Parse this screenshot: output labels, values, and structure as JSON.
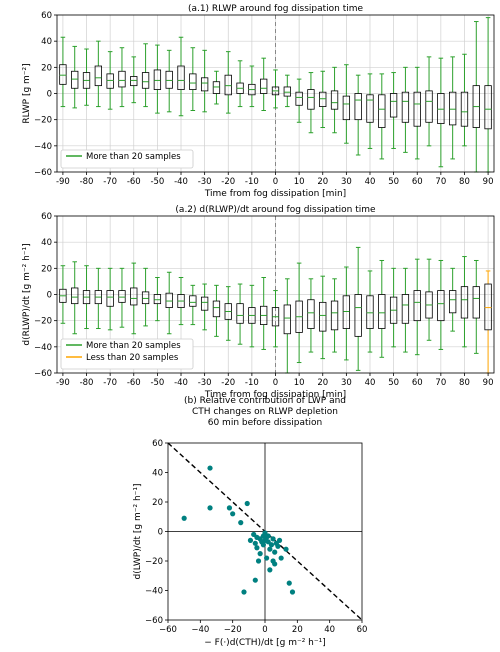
{
  "chart_data": [
    {
      "type": "box",
      "title": "(a.1) RLWP around fog dissipation time",
      "xlabel": "Time from fog dissipation [min]",
      "ylabel": "RLWP [g m⁻²]",
      "xlim": [
        -92.5,
        92.5
      ],
      "ylim": [
        -60,
        60
      ],
      "xticks": [
        -90,
        -80,
        -70,
        -60,
        -50,
        -40,
        -30,
        -20,
        -10,
        0,
        10,
        20,
        30,
        40,
        50,
        60,
        70,
        80,
        90
      ],
      "xticklabels": [
        "-90",
        "-80",
        "-70",
        "-60",
        "-50",
        "-40",
        "-30",
        "-20",
        "-10",
        "0",
        "10",
        "20",
        "30",
        "40",
        "50",
        "60",
        "70",
        "80",
        "90"
      ],
      "yticks": [
        -60,
        -40,
        -20,
        0,
        20,
        40,
        60
      ],
      "yticklabels": [
        "−60",
        "−40",
        "−20",
        "0",
        "20",
        "40",
        "60"
      ],
      "grid": true,
      "vline": 0,
      "legend": {
        "position": "bottom-left",
        "entries": [
          {
            "label": "More than 20 samples",
            "color": "#2ca02c"
          }
        ]
      },
      "series": [
        {
          "name": "More than 20 samples",
          "color": "#2ca02c",
          "x": [
            -90,
            -85,
            -80,
            -75,
            -70,
            -65,
            -60,
            -55,
            -50,
            -45,
            -40,
            -35,
            -30,
            -25,
            -20,
            -15,
            -10,
            -5,
            0,
            5,
            10,
            15,
            20,
            25,
            30,
            35,
            40,
            45,
            50,
            55,
            60,
            65,
            70,
            75,
            80,
            85,
            90
          ],
          "boxes": [
            {
              "wlo": -10,
              "q1": 7,
              "med": 14,
              "q3": 22,
              "whi": 43
            },
            {
              "wlo": -11,
              "q1": 4,
              "med": 11,
              "q3": 17,
              "whi": 36
            },
            {
              "wlo": -9,
              "q1": 4,
              "med": 10,
              "q3": 16,
              "whi": 34
            },
            {
              "wlo": -10,
              "q1": 6,
              "med": 12,
              "q3": 21,
              "whi": 40
            },
            {
              "wlo": -12,
              "q1": 4,
              "med": 10,
              "q3": 15,
              "whi": 32
            },
            {
              "wlo": -10,
              "q1": 5,
              "med": 10,
              "q3": 17,
              "whi": 35
            },
            {
              "wlo": -7,
              "q1": 6,
              "med": 10,
              "q3": 13,
              "whi": 28
            },
            {
              "wlo": -10,
              "q1": 4,
              "med": 9,
              "q3": 16,
              "whi": 38
            },
            {
              "wlo": -15,
              "q1": 3,
              "med": 10,
              "q3": 18,
              "whi": 37
            },
            {
              "wlo": -14,
              "q1": 4,
              "med": 10,
              "q3": 17,
              "whi": 33
            },
            {
              "wlo": -17,
              "q1": 3,
              "med": 10,
              "q3": 21,
              "whi": 43
            },
            {
              "wlo": -13,
              "q1": 3,
              "med": 8,
              "q3": 15,
              "whi": 35
            },
            {
              "wlo": -14,
              "q1": 2,
              "med": 8,
              "q3": 12,
              "whi": 33
            },
            {
              "wlo": -8,
              "q1": 0,
              "med": 5,
              "q3": 9,
              "whi": 17
            },
            {
              "wlo": -15,
              "q1": -1,
              "med": 6,
              "q3": 14,
              "whi": 32
            },
            {
              "wlo": -10,
              "q1": 0,
              "med": 4,
              "q3": 8,
              "whi": 25
            },
            {
              "wlo": -10,
              "q1": -1,
              "med": 3,
              "q3": 7,
              "whi": 21
            },
            {
              "wlo": -13,
              "q1": 0,
              "med": 4,
              "q3": 11,
              "whi": 27
            },
            {
              "wlo": -11,
              "q1": -1,
              "med": 2,
              "q3": 5,
              "whi": 18
            },
            {
              "wlo": -10,
              "q1": -2,
              "med": 1,
              "q3": 5,
              "whi": 14
            },
            {
              "wlo": -22,
              "q1": -9,
              "med": -3,
              "q3": 1,
              "whi": 11
            },
            {
              "wlo": -30,
              "q1": -12,
              "med": -3,
              "q3": 3,
              "whi": 16
            },
            {
              "wlo": -26,
              "q1": -10,
              "med": -4,
              "q3": 1,
              "whi": 17
            },
            {
              "wlo": -30,
              "q1": -12,
              "med": -7,
              "q3": 2,
              "whi": 20
            },
            {
              "wlo": -38,
              "q1": -20,
              "med": -8,
              "q3": -2,
              "whi": 22
            },
            {
              "wlo": -47,
              "q1": -20,
              "med": -5,
              "q3": 0,
              "whi": 14
            },
            {
              "wlo": -42,
              "q1": -22,
              "med": -5,
              "q3": -1,
              "whi": 15
            },
            {
              "wlo": -50,
              "q1": -26,
              "med": -12,
              "q3": -1,
              "whi": 15
            },
            {
              "wlo": -42,
              "q1": -18,
              "med": -6,
              "q3": 0,
              "whi": 16
            },
            {
              "wlo": -45,
              "q1": -22,
              "med": -6,
              "q3": 1,
              "whi": 20
            },
            {
              "wlo": -50,
              "q1": -25,
              "med": -8,
              "q3": 1,
              "whi": 20
            },
            {
              "wlo": -40,
              "q1": -22,
              "med": -6,
              "q3": 2,
              "whi": 28
            },
            {
              "wlo": -56,
              "q1": -23,
              "med": -12,
              "q3": 0,
              "whi": 27
            },
            {
              "wlo": -50,
              "q1": -24,
              "med": -12,
              "q3": 1,
              "whi": 28
            },
            {
              "wlo": -40,
              "q1": -25,
              "med": -14,
              "q3": 1,
              "whi": 30
            },
            {
              "wlo": -60,
              "q1": -26,
              "med": -10,
              "q3": 6,
              "whi": 55
            },
            {
              "wlo": -60,
              "q1": -27,
              "med": -12,
              "q3": 6,
              "whi": 58
            }
          ]
        }
      ]
    },
    {
      "type": "box",
      "title": "(a.2) d(RLWP)/dt around fog dissipation time",
      "xlabel": "Time from fog dissipation [min]",
      "ylabel": "d(RLWP)/dt [g m⁻² h⁻¹]",
      "xlim": [
        -92.5,
        92.5
      ],
      "ylim": [
        -60,
        60
      ],
      "xticks": [
        -90,
        -80,
        -70,
        -60,
        -50,
        -40,
        -30,
        -20,
        -10,
        0,
        10,
        20,
        30,
        40,
        50,
        60,
        70,
        80,
        90
      ],
      "xticklabels": [
        "-90",
        "-80",
        "-70",
        "-60",
        "-50",
        "-40",
        "-30",
        "-20",
        "-10",
        "0",
        "10",
        "20",
        "30",
        "40",
        "50",
        "60",
        "70",
        "80",
        "90"
      ],
      "yticks": [
        -60,
        -40,
        -20,
        0,
        20,
        40,
        60
      ],
      "yticklabels": [
        "−60",
        "−40",
        "−20",
        "0",
        "20",
        "40",
        "60"
      ],
      "grid": true,
      "vline": 0,
      "legend": {
        "position": "bottom-left",
        "entries": [
          {
            "label": "More than 20 samples",
            "color": "#2ca02c"
          },
          {
            "label": "Less than 20 samples",
            "color": "#ffa500"
          }
        ]
      },
      "series": [
        {
          "name": "More than 20 samples",
          "color": "#2ca02c",
          "x": [
            -90,
            -85,
            -80,
            -75,
            -70,
            -65,
            -60,
            -55,
            -50,
            -45,
            -40,
            -35,
            -30,
            -25,
            -20,
            -15,
            -10,
            -5,
            0,
            5,
            10,
            15,
            20,
            25,
            30,
            35,
            40,
            45,
            50,
            55,
            60,
            65,
            70,
            75,
            80,
            85
          ],
          "boxes": [
            {
              "wlo": -22,
              "q1": -6,
              "med": -1,
              "q3": 4,
              "whi": 22
            },
            {
              "wlo": -30,
              "q1": -7,
              "med": -2,
              "q3": 5,
              "whi": 25
            },
            {
              "wlo": -26,
              "q1": -7,
              "med": -2,
              "q3": 3,
              "whi": 22
            },
            {
              "wlo": -26,
              "q1": -7,
              "med": -2,
              "q3": 3,
              "whi": 20
            },
            {
              "wlo": -27,
              "q1": -9,
              "med": -2,
              "q3": 3,
              "whi": 20
            },
            {
              "wlo": -25,
              "q1": -6,
              "med": -2,
              "q3": 3,
              "whi": 20
            },
            {
              "wlo": -30,
              "q1": -8,
              "med": -3,
              "q3": 5,
              "whi": 24
            },
            {
              "wlo": -24,
              "q1": -7,
              "med": -3,
              "q3": 2,
              "whi": 20
            },
            {
              "wlo": -20,
              "q1": -7,
              "med": -4,
              "q3": 0,
              "whi": 13
            },
            {
              "wlo": -30,
              "q1": -10,
              "med": -5,
              "q3": 1,
              "whi": 17
            },
            {
              "wlo": -23,
              "q1": -10,
              "med": -5,
              "q3": 0,
              "whi": 13
            },
            {
              "wlo": -23,
              "q1": -9,
              "med": -6,
              "q3": -1,
              "whi": 7
            },
            {
              "wlo": -27,
              "q1": -12,
              "med": -6,
              "q3": -2,
              "whi": 8
            },
            {
              "wlo": -32,
              "q1": -17,
              "med": -10,
              "q3": -5,
              "whi": 7
            },
            {
              "wlo": -35,
              "q1": -19,
              "med": -13,
              "q3": -7,
              "whi": 6
            },
            {
              "wlo": -38,
              "q1": -22,
              "med": -16,
              "q3": -7,
              "whi": 8
            },
            {
              "wlo": -40,
              "q1": -22,
              "med": -16,
              "q3": -10,
              "whi": 7
            },
            {
              "wlo": -42,
              "q1": -23,
              "med": -16,
              "q3": -9,
              "whi": 13
            },
            {
              "wlo": -40,
              "q1": -24,
              "med": -17,
              "q3": -10,
              "whi": 3
            },
            {
              "wlo": -60,
              "q1": -30,
              "med": -18,
              "q3": -8,
              "whi": 12
            },
            {
              "wlo": -52,
              "q1": -29,
              "med": -17,
              "q3": -5,
              "whi": 24
            },
            {
              "wlo": -44,
              "q1": -26,
              "med": -14,
              "q3": -4,
              "whi": 12
            },
            {
              "wlo": -49,
              "q1": -28,
              "med": -16,
              "q3": -6,
              "whi": 14
            },
            {
              "wlo": -44,
              "q1": -27,
              "med": -14,
              "q3": -5,
              "whi": 12
            },
            {
              "wlo": -50,
              "q1": -26,
              "med": -13,
              "q3": -1,
              "whi": 21
            },
            {
              "wlo": -58,
              "q1": -32,
              "med": -10,
              "q3": 0,
              "whi": 36
            },
            {
              "wlo": -44,
              "q1": -26,
              "med": -14,
              "q3": -1,
              "whi": 18
            },
            {
              "wlo": -48,
              "q1": -26,
              "med": -14,
              "q3": 0,
              "whi": 26
            },
            {
              "wlo": -40,
              "q1": -22,
              "med": -12,
              "q3": -2,
              "whi": 20
            },
            {
              "wlo": -44,
              "q1": -22,
              "med": -8,
              "q3": 0,
              "whi": 20
            },
            {
              "wlo": -46,
              "q1": -20,
              "med": -6,
              "q3": 3,
              "whi": 27
            },
            {
              "wlo": -35,
              "q1": -18,
              "med": -8,
              "q3": 2,
              "whi": 27
            },
            {
              "wlo": -42,
              "q1": -20,
              "med": -7,
              "q3": 3,
              "whi": 26
            },
            {
              "wlo": -28,
              "q1": -14,
              "med": -4,
              "q3": 3,
              "whi": 20
            },
            {
              "wlo": -40,
              "q1": -18,
              "med": -4,
              "q3": 6,
              "whi": 29
            },
            {
              "wlo": -45,
              "q1": -18,
              "med": -3,
              "q3": 6,
              "whi": 26
            }
          ]
        },
        {
          "name": "Less than 20 samples",
          "color": "#ffa500",
          "x": [
            90
          ],
          "boxes": [
            {
              "wlo": -60,
              "q1": -27,
              "med": -10,
              "q3": 8,
              "whi": 18
            }
          ]
        }
      ]
    },
    {
      "type": "scatter",
      "title": "(b) Relative contribution of LWP and CTH changes on RLWP depletion 60 min before dissipation",
      "title_lines": [
        "(b) Relative contribution of LWP and",
        "CTH changes on RLWP depletion",
        "60 min before dissipation"
      ],
      "xlabel": "− F(·)d(CTH)/dt [g m⁻² h⁻¹]",
      "ylabel": "d(LWP)/dt [g m⁻² h⁻¹]",
      "xlim": [
        -60,
        60
      ],
      "ylim": [
        -60,
        60
      ],
      "xticks": [
        -60,
        -40,
        -20,
        0,
        20,
        40,
        60
      ],
      "xticklabels": [
        "−60",
        "−40",
        "−20",
        "0",
        "20",
        "40",
        "60"
      ],
      "yticks": [
        -60,
        -40,
        -20,
        0,
        20,
        40,
        60
      ],
      "yticklabels": [
        "−60",
        "−40",
        "−20",
        "0",
        "20",
        "40",
        "60"
      ],
      "grid": false,
      "reference_line": {
        "slope": -1,
        "intercept": 0,
        "style": "dashed",
        "color": "#000000"
      },
      "axes_lines": {
        "x": 0,
        "y": 0
      },
      "color": "#008080",
      "points": [
        [
          -50,
          9
        ],
        [
          -34,
          43
        ],
        [
          -34,
          16
        ],
        [
          -22,
          16
        ],
        [
          -20,
          12
        ],
        [
          -15,
          6
        ],
        [
          -13,
          -41
        ],
        [
          -11,
          19
        ],
        [
          -9,
          -6
        ],
        [
          -7,
          -2
        ],
        [
          -6,
          -8
        ],
        [
          -5,
          -4
        ],
        [
          -5,
          -11
        ],
        [
          -3,
          -5
        ],
        [
          -2,
          -7
        ],
        [
          -1,
          -3
        ],
        [
          -1,
          -9
        ],
        [
          0,
          -1
        ],
        [
          0,
          -6
        ],
        [
          1,
          -4
        ],
        [
          1,
          -18
        ],
        [
          2,
          -7
        ],
        [
          2,
          -3
        ],
        [
          3,
          -12
        ],
        [
          4,
          -9
        ],
        [
          5,
          -5
        ],
        [
          5,
          -20
        ],
        [
          6,
          -14
        ],
        [
          7,
          -8
        ],
        [
          8,
          -10
        ],
        [
          9,
          -6
        ],
        [
          10,
          -18
        ],
        [
          13,
          -12
        ],
        [
          15,
          -35
        ],
        [
          17,
          -41
        ],
        [
          -6,
          -33
        ],
        [
          6,
          -22
        ],
        [
          -3,
          -15
        ],
        [
          -4,
          -20
        ],
        [
          3,
          -26
        ]
      ]
    }
  ]
}
